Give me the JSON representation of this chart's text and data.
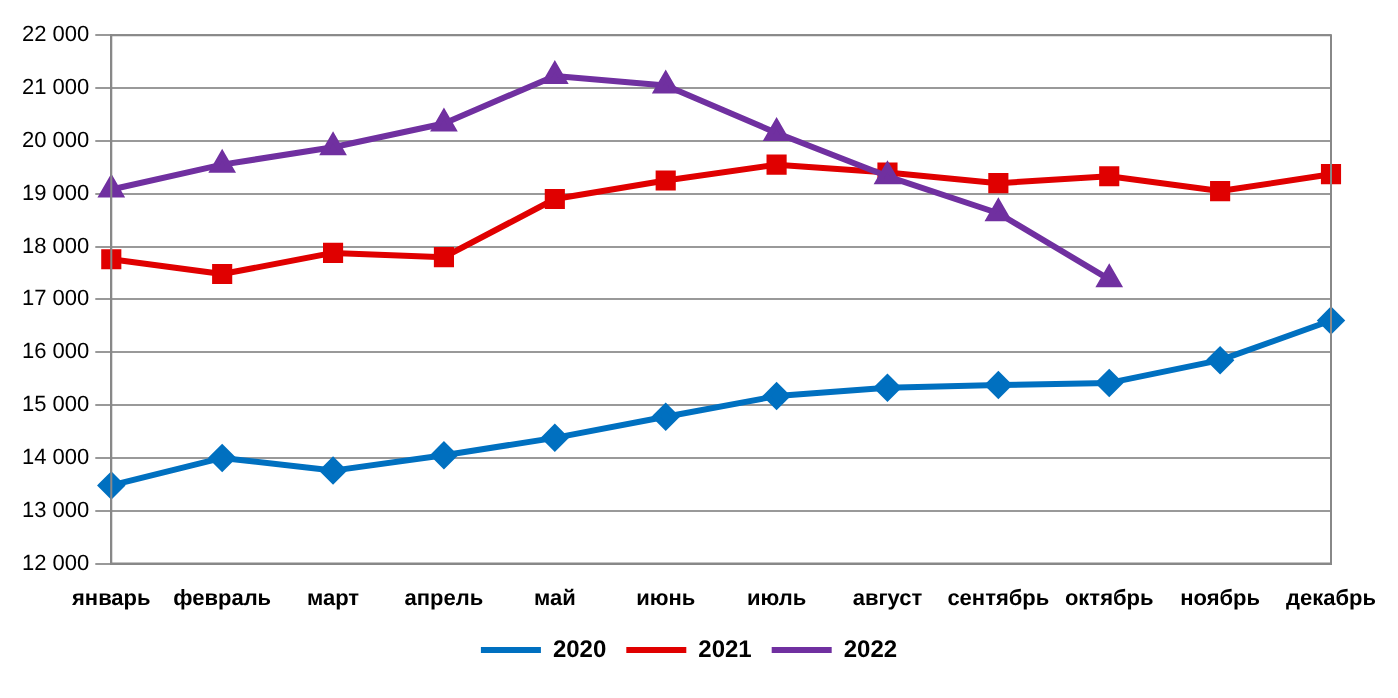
{
  "chart_data": {
    "type": "line",
    "categories": [
      "январь",
      "февраль",
      "март",
      "апрель",
      "май",
      "июнь",
      "июль",
      "август",
      "сентябрь",
      "октябрь",
      "ноябрь",
      "декабрь"
    ],
    "series": [
      {
        "name": "2020",
        "color": "#0070c0",
        "marker": "diamond",
        "values": [
          13480,
          14000,
          13760,
          14050,
          14380,
          14780,
          15170,
          15330,
          15380,
          15420,
          15850,
          16600
        ]
      },
      {
        "name": "2021",
        "color": "#e00000",
        "marker": "square",
        "values": [
          17760,
          17480,
          17880,
          17800,
          18900,
          19250,
          19550,
          19400,
          19200,
          19330,
          19050,
          19370
        ]
      },
      {
        "name": "2022",
        "color": "#7030a0",
        "marker": "triangle",
        "values": [
          19080,
          19550,
          19880,
          20330,
          21230,
          21050,
          20150,
          19330,
          18630,
          17380,
          null,
          null
        ]
      }
    ],
    "ylim": [
      12000,
      22000
    ],
    "yticks": [
      {
        "value": 12000,
        "label": "12 000"
      },
      {
        "value": 13000,
        "label": "13 000"
      },
      {
        "value": 14000,
        "label": "14 000"
      },
      {
        "value": 15000,
        "label": "15 000"
      },
      {
        "value": 16000,
        "label": "16 000"
      },
      {
        "value": 17000,
        "label": "17 000"
      },
      {
        "value": 18000,
        "label": "18 000"
      },
      {
        "value": 19000,
        "label": "19 000"
      },
      {
        "value": 20000,
        "label": "20 000"
      },
      {
        "value": 21000,
        "label": "21 000"
      },
      {
        "value": 22000,
        "label": "22 000"
      }
    ],
    "grid": "y",
    "legend": "bottom",
    "line_style": "solid"
  }
}
